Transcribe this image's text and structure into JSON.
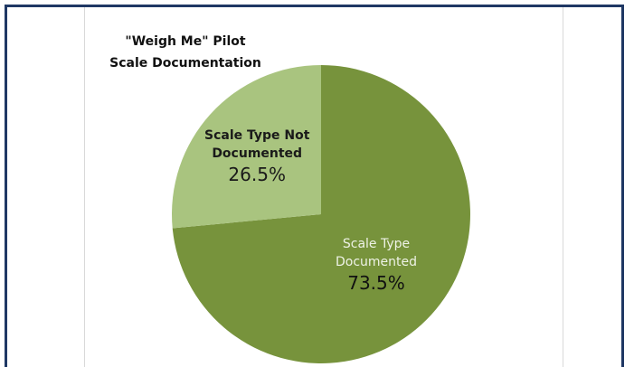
{
  "chart_data": {
    "type": "pie",
    "title": [
      "\"Weigh Me\" Pilot",
      "Scale Documentation"
    ],
    "categories": [
      "Scale Type Documented",
      "Scale Type Not Documented"
    ],
    "values": [
      73.5,
      26.5
    ],
    "value_labels": [
      "73.5%",
      "26.5%"
    ],
    "colors": [
      "#77933c",
      "#a9c47f"
    ]
  }
}
